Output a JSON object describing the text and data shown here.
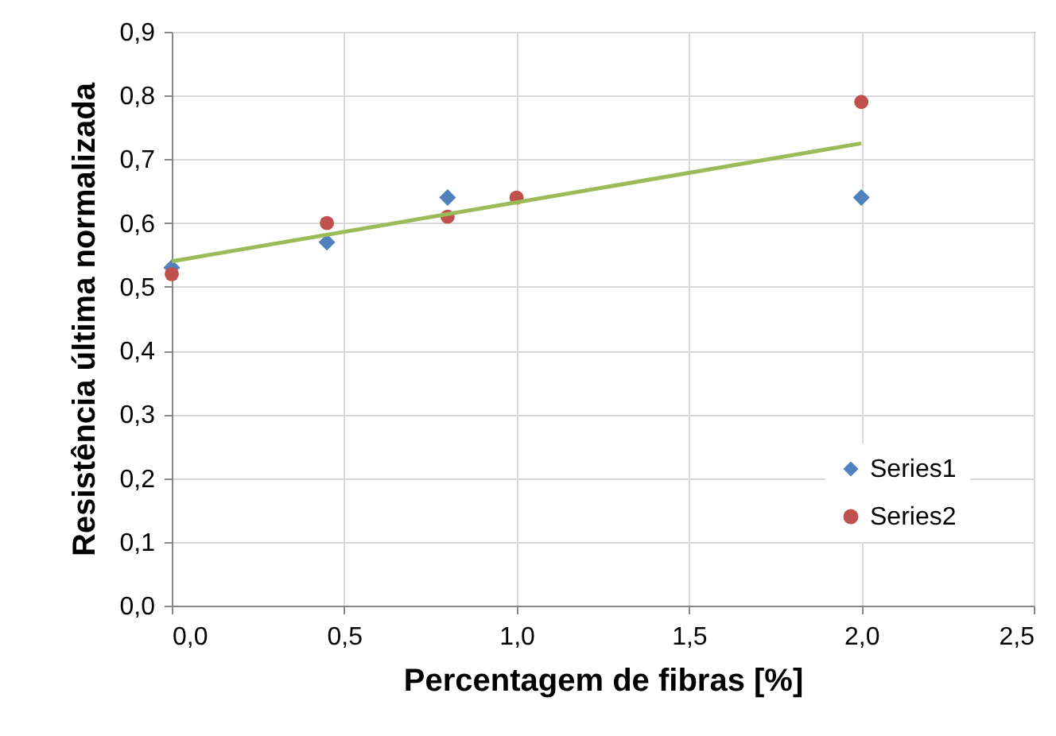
{
  "chart_data": {
    "type": "scatter",
    "xlabel": "Percentagem de fibras [%]",
    "ylabel": "Resistência última normalizada",
    "xlim": [
      0,
      2.5
    ],
    "xticks": [
      {
        "value": 0,
        "label": "0,0"
      },
      {
        "value": 0.5,
        "label": "0,5"
      },
      {
        "value": 1,
        "label": "1,0"
      },
      {
        "value": 1.5,
        "label": "1,5"
      },
      {
        "value": 2,
        "label": "2,0"
      },
      {
        "value": 2.5,
        "label": "2,5"
      }
    ],
    "ylim": [
      0,
      0.9
    ],
    "yticks": [
      {
        "value": 0,
        "label": "0,0"
      },
      {
        "value": 0.1,
        "label": "0,1"
      },
      {
        "value": 0.2,
        "label": "0,2"
      },
      {
        "value": 0.3,
        "label": "0,3"
      },
      {
        "value": 0.4,
        "label": "0,4"
      },
      {
        "value": 0.5,
        "label": "0,5"
      },
      {
        "value": 0.6,
        "label": "0,6"
      },
      {
        "value": 0.7,
        "label": "0,7"
      },
      {
        "value": 0.8,
        "label": "0,8"
      },
      {
        "value": 0.9,
        "label": "0,9"
      }
    ],
    "grid": true,
    "legend": "bottom right",
    "series": [
      {
        "name": "Series1",
        "color": "#4f81bd",
        "marker": "diamond",
        "x": [
          0,
          0.45,
          0.8,
          2
        ],
        "values": [
          0.53,
          0.57,
          0.64,
          0.64
        ]
      },
      {
        "name": "Series2",
        "color": "#c0504d",
        "marker": "circle",
        "x": [
          0,
          0.45,
          0.8,
          1,
          2
        ],
        "values": [
          0.52,
          0.6,
          0.61,
          0.64,
          0.79
        ]
      },
      {
        "type": "line",
        "color": "#9bbb59",
        "marker": "none",
        "x": [
          0,
          2
        ],
        "values": [
          0.54,
          0.725
        ]
      }
    ]
  }
}
